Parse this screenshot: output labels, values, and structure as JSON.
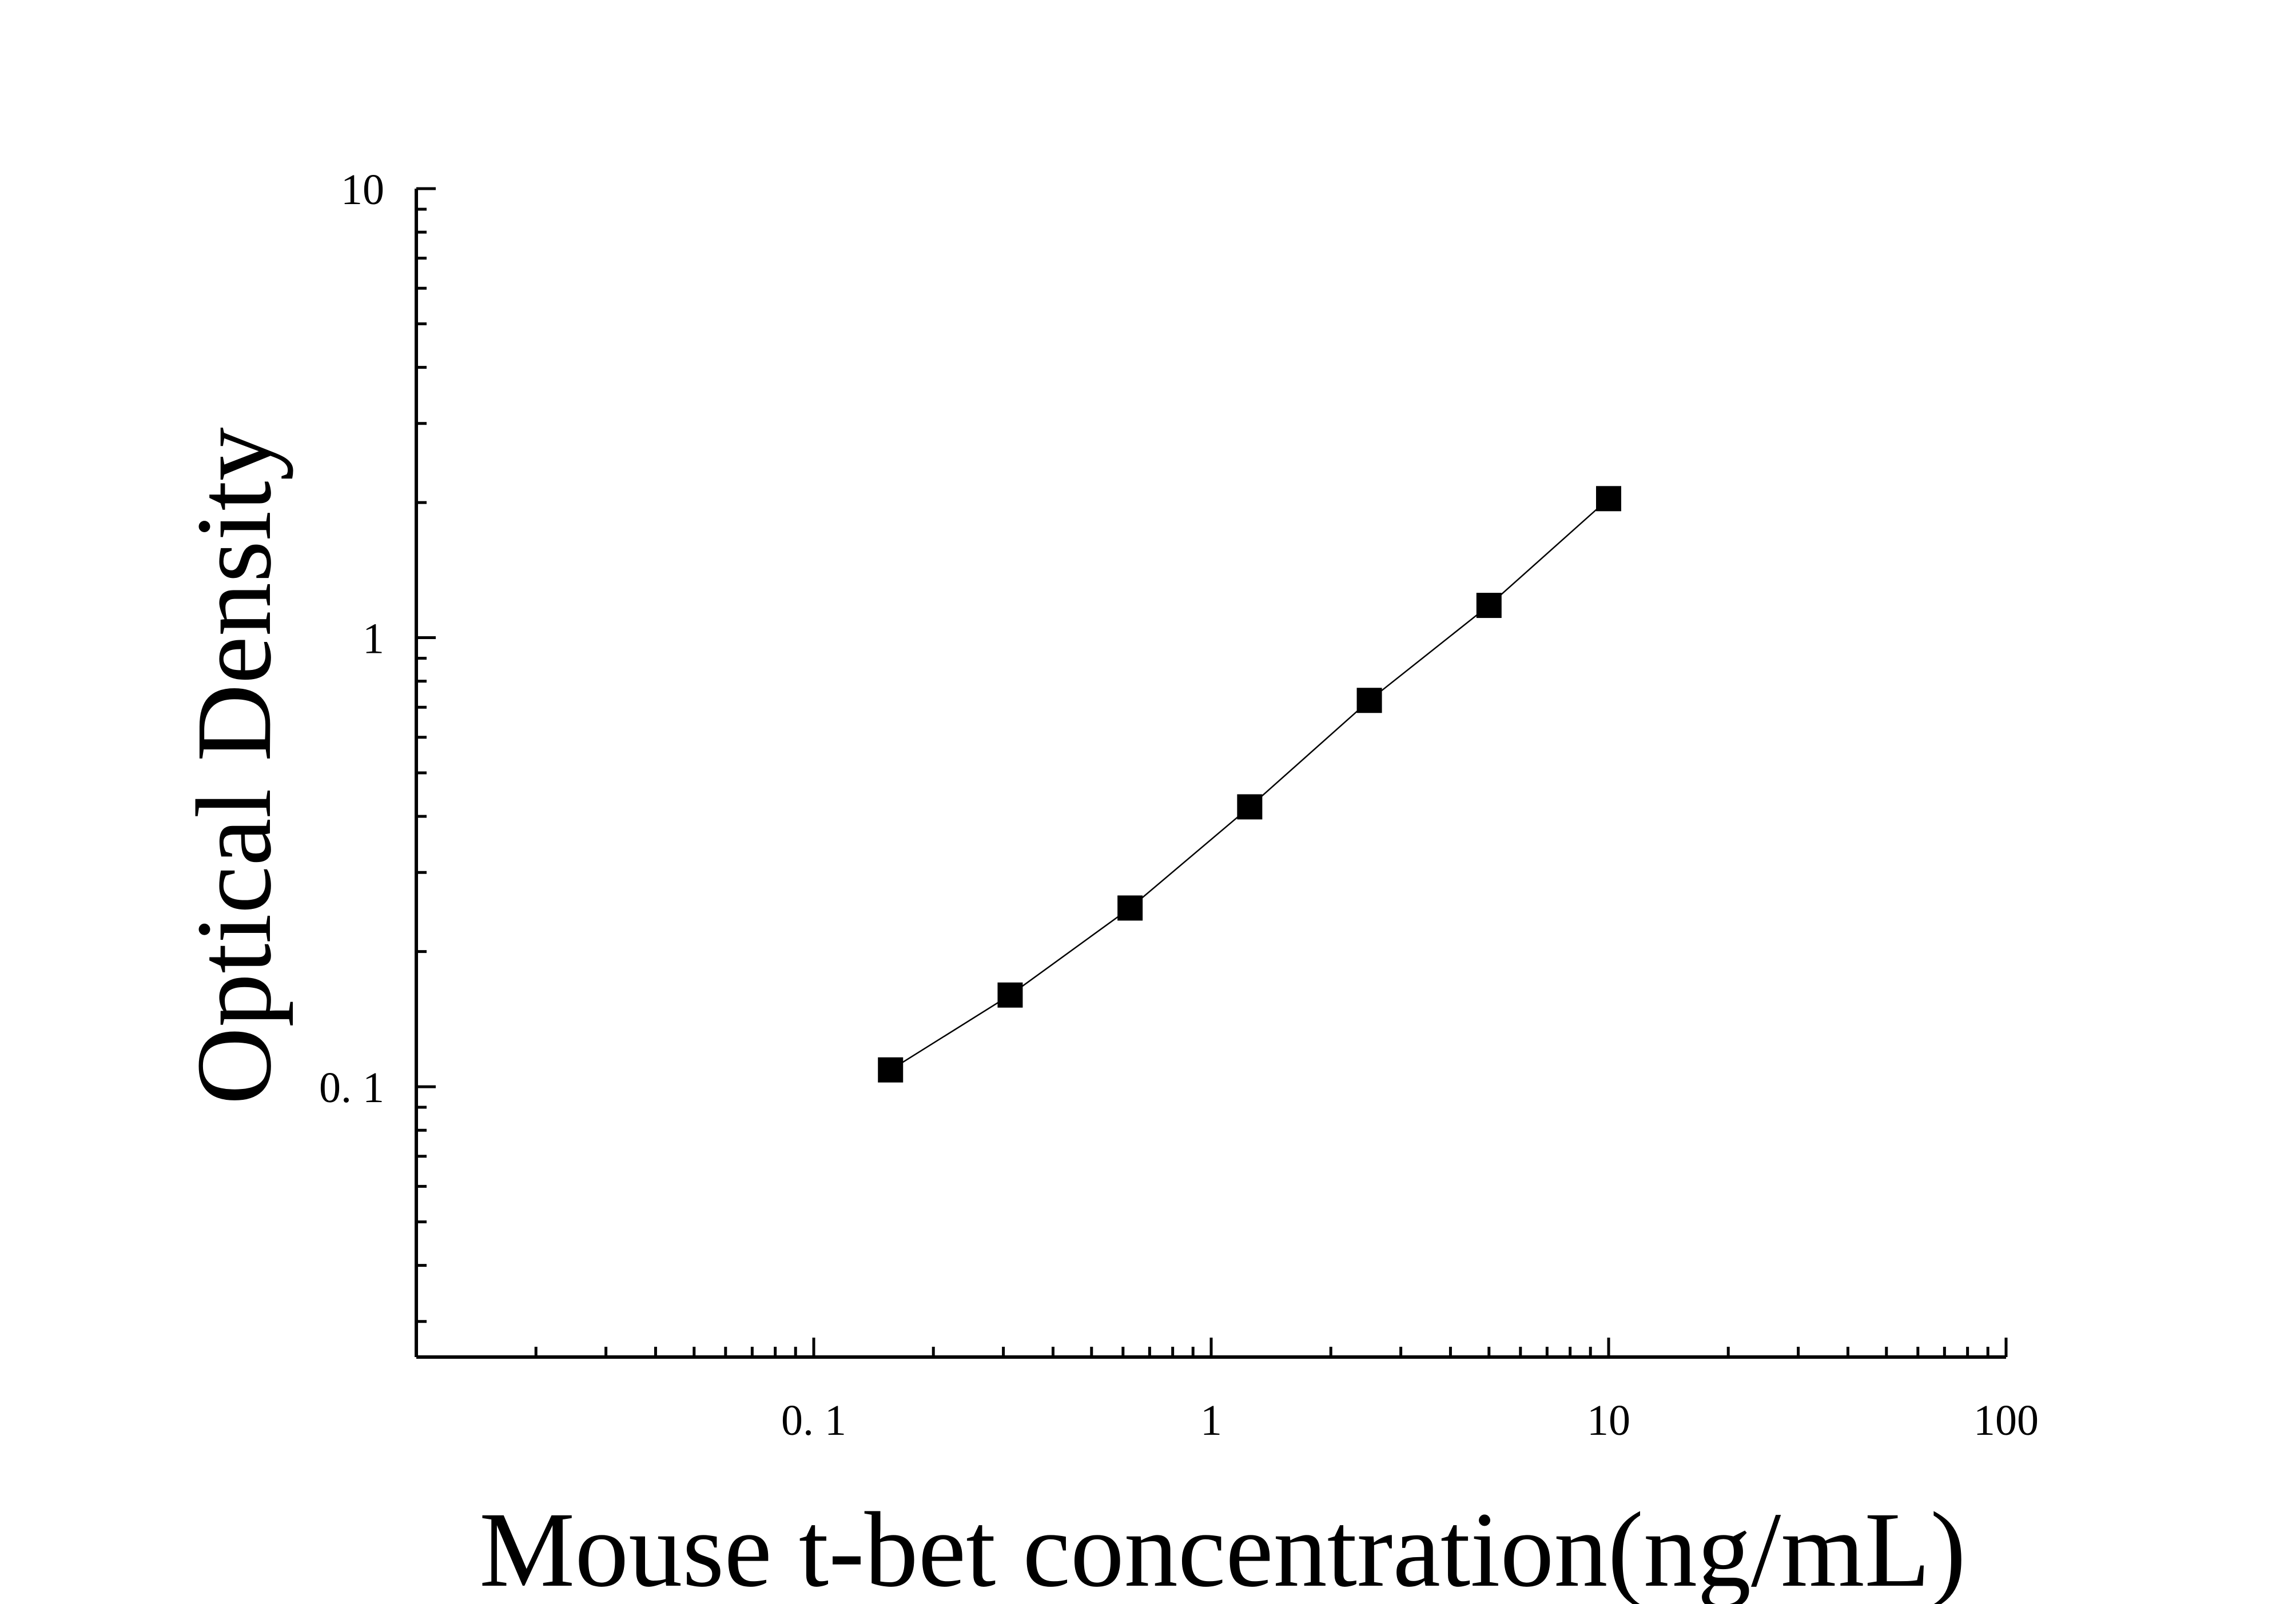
{
  "chart_data": {
    "type": "scatter",
    "title": "",
    "xlabel": "Mouse t-bet concentration(ng/mL)",
    "ylabel": "Optical Density",
    "x_scale": "log",
    "y_scale": "log",
    "xlim": [
      0.01,
      100
    ],
    "ylim": [
      0.025,
      10
    ],
    "x_ticks": [
      {
        "value": 0.1,
        "label": "0. 1"
      },
      {
        "value": 1,
        "label": "1"
      },
      {
        "value": 10,
        "label": "10"
      },
      {
        "value": 100,
        "label": "100"
      }
    ],
    "y_ticks": [
      {
        "value": 0.1,
        "label": "0. 1"
      },
      {
        "value": 1,
        "label": "1"
      },
      {
        "value": 10,
        "label": "10"
      }
    ],
    "grid": false,
    "legend": "none",
    "series": [
      {
        "x": [
          0.156,
          0.312,
          0.625,
          1.25,
          2.5,
          5,
          10
        ],
        "y": [
          0.109,
          0.16,
          0.25,
          0.42,
          0.725,
          1.18,
          2.04
        ],
        "marker": "square",
        "line": "connected",
        "color": "#000000"
      }
    ]
  }
}
